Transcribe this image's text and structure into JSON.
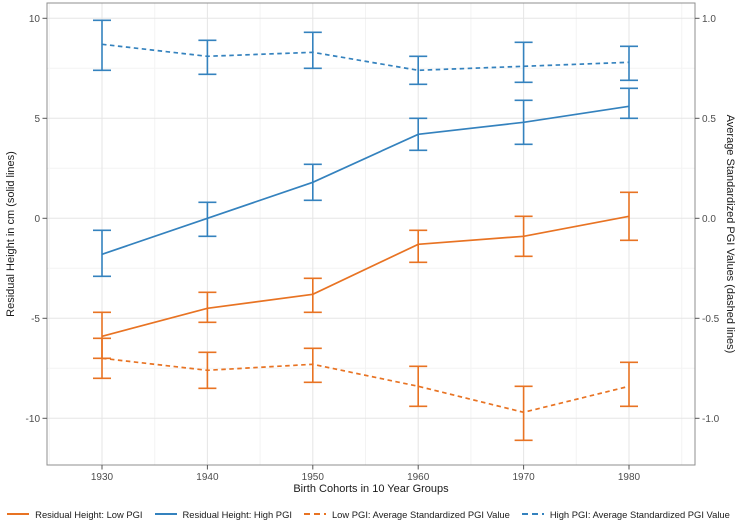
{
  "chart_data": {
    "type": "line",
    "title": "",
    "xlabel": "Birth Cohorts in 10 Year Groups",
    "ylabel_left": "Residual Height in cm (solid lines)",
    "ylabel_right": "Average Standardized PGI Values (dashed lines)",
    "x_categories": [
      "1930",
      "1940",
      "1950",
      "1960",
      "1970",
      "1980"
    ],
    "x_years": [
      1930,
      1940,
      1950,
      1960,
      1970,
      1980
    ],
    "left_axis": {
      "ticks": [
        10,
        5,
        0,
        -5,
        -10
      ],
      "tick_labels": [
        "10",
        "5",
        "0",
        "-5",
        "-10"
      ],
      "minor_ticks": [
        7.5,
        2.5,
        -2.5,
        -7.5
      ],
      "range": [
        -12.35,
        10.77
      ]
    },
    "right_axis": {
      "ticks": [
        1.0,
        0.5,
        0.0,
        -0.5,
        -1.0
      ],
      "tick_labels": [
        "1.0",
        "0.5",
        "0.0",
        "-0.5",
        "-1.0"
      ],
      "scale_to_left": 10,
      "range": [
        -1.235,
        1.077
      ]
    },
    "grid": true,
    "legend_position": "bottom",
    "colors": {
      "low_pgi": "#E87323",
      "high_pgi": "#3482BE"
    },
    "series": [
      {
        "name": "Residual Height:  Low PGI",
        "axis": "left",
        "line": "solid",
        "color_key": "low_pgi",
        "values": [
          -5.9,
          -4.5,
          -3.8,
          -1.3,
          -0.9,
          0.1
        ],
        "err_low": [
          -7.0,
          -5.2,
          -4.7,
          -2.2,
          -1.9,
          -1.1
        ],
        "err_high": [
          -4.7,
          -3.7,
          -3.0,
          -0.6,
          0.1,
          1.3
        ]
      },
      {
        "name": "Residual Height: High PGI",
        "axis": "left",
        "line": "solid",
        "color_key": "high_pgi",
        "values": [
          -1.8,
          0.0,
          1.8,
          4.2,
          4.8,
          5.6
        ],
        "err_low": [
          -2.9,
          -0.9,
          0.9,
          3.4,
          3.7,
          5.0
        ],
        "err_high": [
          -0.6,
          0.8,
          2.7,
          5.0,
          5.9,
          6.5
        ]
      },
      {
        "name": "Low PGI: Average Standardized PGI Value",
        "axis": "right",
        "line": "dashed",
        "color_key": "low_pgi",
        "values": [
          -0.7,
          -0.76,
          -0.73,
          -0.84,
          -0.97,
          -0.84
        ],
        "err_low": [
          -0.8,
          -0.85,
          -0.82,
          -0.94,
          -1.11,
          -0.94
        ],
        "err_high": [
          -0.6,
          -0.67,
          -0.65,
          -0.74,
          -0.84,
          -0.72
        ]
      },
      {
        "name": "High PGI: Average Standardized PGI Value",
        "axis": "right",
        "line": "dashed",
        "color_key": "high_pgi",
        "values": [
          0.87,
          0.81,
          0.83,
          0.74,
          0.76,
          0.78
        ],
        "err_low": [
          0.74,
          0.72,
          0.75,
          0.67,
          0.68,
          0.69
        ],
        "err_high": [
          0.99,
          0.89,
          0.93,
          0.81,
          0.88,
          0.86
        ]
      }
    ]
  }
}
